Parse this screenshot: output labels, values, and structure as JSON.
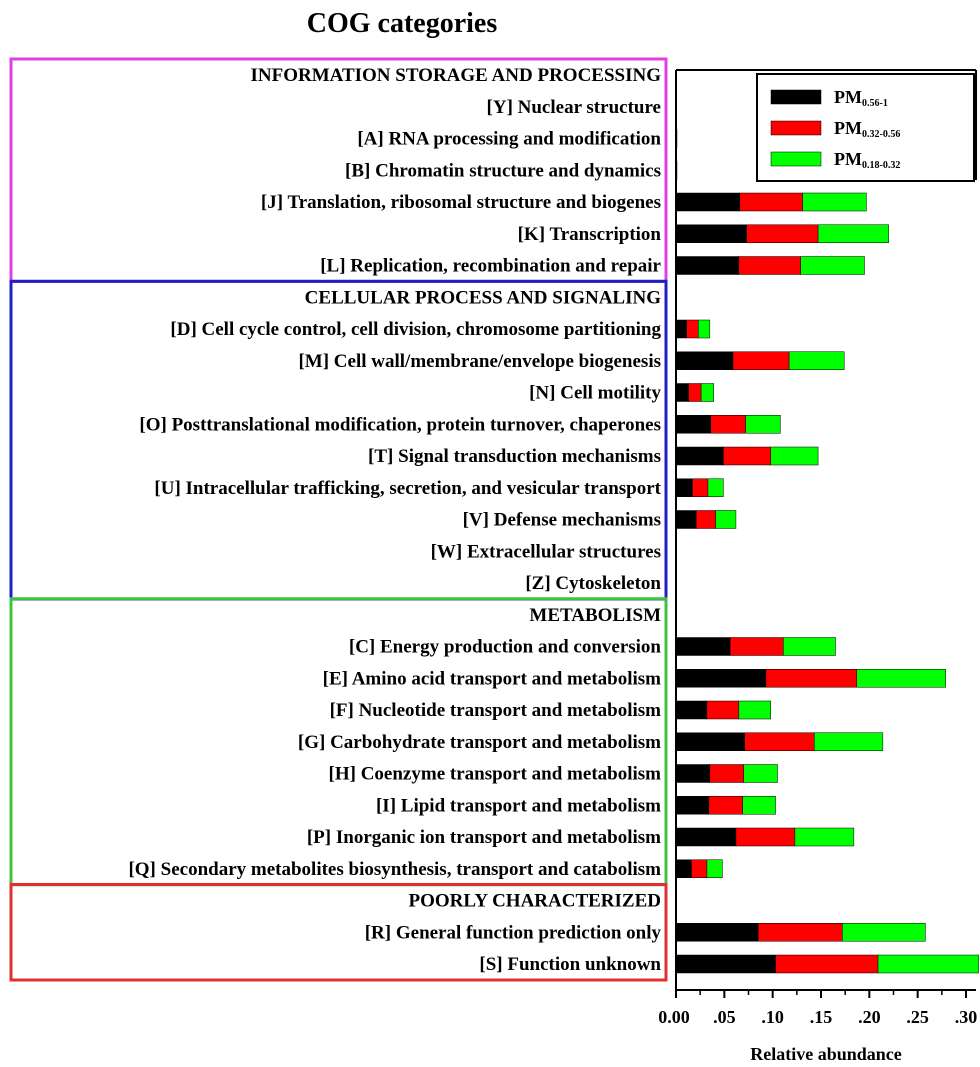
{
  "chart_data": {
    "type": "bar",
    "stacked": true,
    "orientation": "horizontal",
    "title": "COG categories",
    "xlabel": "Relative abundance",
    "xlim": [
      0,
      0.31
    ],
    "xticks": [
      "0.00",
      ".05",
      ".10",
      ".15",
      ".20",
      ".25",
      ".30"
    ],
    "legend": {
      "placement": "top-right",
      "entries": [
        {
          "base": "PM",
          "sub": "0.56-1",
          "color": "#000000"
        },
        {
          "base": "PM",
          "sub": "0.32-0.56",
          "color": "#ff0000"
        },
        {
          "base": "PM",
          "sub": "0.18-0.32",
          "color": "#00ff00"
        }
      ]
    },
    "groups": [
      {
        "name": "INFORMATION STORAGE AND PROCESSING",
        "box_color": "#e040e0",
        "categories": [
          "[Y] Nuclear structure",
          "[A] RNA processing and modification",
          "[B] Chromatin structure and dynamics",
          "[J] Translation, ribosomal structure and biogenes",
          "[K] Transcription",
          "[L] Replication, recombination and repair"
        ]
      },
      {
        "name": "CELLULAR PROCESS AND SIGNALING",
        "box_color": "#2020c0",
        "categories": [
          "[D] Cell cycle control, cell division, chromosome partitioning",
          "[M] Cell wall/membrane/envelope biogenesis",
          "[N] Cell motility",
          "[O] Posttranslational modification, protein turnover, chaperones",
          "[T] Signal transduction mechanisms",
          "[U] Intracellular trafficking, secretion, and vesicular transport",
          "[V] Defense mechanisms",
          "[W] Extracellular structures",
          "[Z] Cytoskeleton"
        ]
      },
      {
        "name": "METABOLISM",
        "box_color": "#40c040",
        "categories": [
          "[C] Energy production and conversion",
          "[E] Amino acid transport and metabolism",
          "[F] Nucleotide transport and metabolism",
          "[G] Carbohydrate transport and metabolism",
          "[H] Coenzyme transport and metabolism",
          "[I]   Lipid transport and metabolism",
          "[P]  Inorganic ion transport and metabolism",
          "[Q] Secondary metabolites biosynthesis, transport and catabolism"
        ]
      },
      {
        "name": "POORLY CHARACTERIZED",
        "box_color": "#e03030",
        "categories": [
          "[R] General function prediction only",
          "[S] Function unknown"
        ]
      }
    ],
    "series": [
      {
        "name": "PM0.56-1",
        "color": "#000000",
        "values": [
          0,
          0.0005,
          0.0005,
          0.066,
          0.073,
          0.065,
          0.011,
          0.059,
          0.013,
          0.036,
          0.049,
          0.017,
          0.021,
          0,
          0,
          0.056,
          0.093,
          0.032,
          0.071,
          0.035,
          0.034,
          0.062,
          0.016,
          0.085,
          0.103
        ]
      },
      {
        "name": "PM0.32-0.56",
        "color": "#ff0000",
        "values": [
          0,
          0.0005,
          0.0005,
          0.065,
          0.074,
          0.064,
          0.012,
          0.058,
          0.013,
          0.036,
          0.049,
          0.016,
          0.02,
          0,
          0,
          0.055,
          0.094,
          0.033,
          0.072,
          0.035,
          0.035,
          0.061,
          0.016,
          0.087,
          0.106
        ]
      },
      {
        "name": "PM0.18-0.32",
        "color": "#00ff00",
        "values": [
          0,
          0,
          0,
          0.066,
          0.073,
          0.066,
          0.012,
          0.057,
          0.013,
          0.036,
          0.049,
          0.016,
          0.021,
          0,
          0,
          0.054,
          0.092,
          0.033,
          0.071,
          0.035,
          0.034,
          0.061,
          0.016,
          0.086,
          0.104
        ]
      }
    ]
  }
}
